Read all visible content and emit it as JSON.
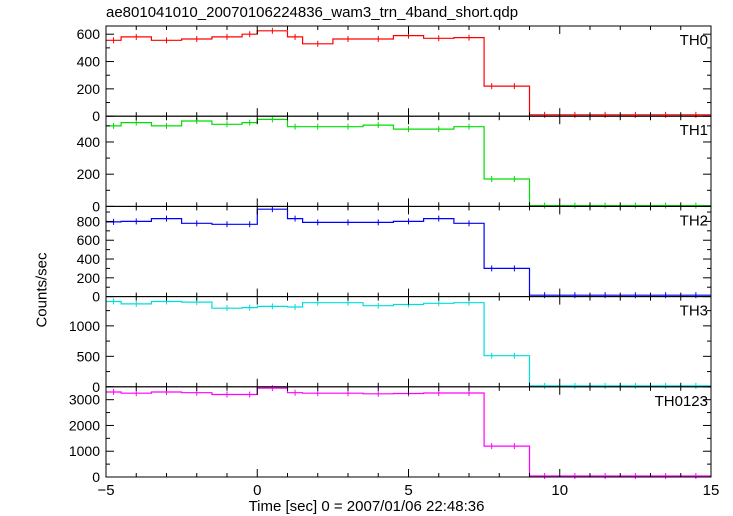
{
  "title": "ae801041010_20070106224836_wam3_trn_4band_short.qdp",
  "xlabel": "Time [sec] 0 = 2007/01/06 22:48:36",
  "ylabel": "Counts/sec",
  "chart_data": {
    "type": "line",
    "step": true,
    "xlim": [
      -5,
      15
    ],
    "xticks": [
      -5,
      0,
      5,
      10,
      15
    ],
    "xticklabels": [
      "−5",
      "0",
      "5",
      "10",
      "15"
    ],
    "bin_edges": [
      -5,
      -4.5,
      -3.5,
      -2.5,
      -1.5,
      -0.5,
      0,
      1,
      1.5,
      2.5,
      3.5,
      4.5,
      5.5,
      6.5,
      7.5,
      8,
      9,
      10,
      11,
      12,
      13,
      14,
      15
    ],
    "panels": [
      {
        "name": "TH0",
        "color": "#ff0000",
        "ylim": [
          0,
          660
        ],
        "yticks": [
          0,
          200,
          400,
          600
        ],
        "values": [
          555,
          580,
          555,
          565,
          580,
          600,
          625,
          580,
          530,
          565,
          565,
          590,
          570,
          575,
          220,
          220,
          10,
          10,
          10,
          10,
          10,
          10
        ]
      },
      {
        "name": "TH1",
        "color": "#00dd00",
        "ylim": [
          0,
          560
        ],
        "yticks": [
          0,
          200,
          400
        ],
        "values": [
          500,
          520,
          500,
          530,
          510,
          520,
          540,
          495,
          495,
          495,
          505,
          480,
          480,
          495,
          170,
          170,
          5,
          5,
          5,
          5,
          5,
          5
        ]
      },
      {
        "name": "TH2",
        "color": "#0000ff",
        "ylim": [
          0,
          960
        ],
        "yticks": [
          0,
          200,
          400,
          600,
          800
        ],
        "values": [
          795,
          800,
          830,
          780,
          770,
          770,
          930,
          830,
          790,
          790,
          790,
          800,
          830,
          780,
          300,
          300,
          15,
          15,
          15,
          15,
          15,
          15
        ]
      },
      {
        "name": "TH3",
        "color": "#00dddd",
        "ylim": [
          0,
          1480
        ],
        "yticks": [
          0,
          500,
          1000
        ],
        "values": [
          1400,
          1360,
          1400,
          1390,
          1290,
          1300,
          1320,
          1310,
          1380,
          1380,
          1330,
          1350,
          1370,
          1380,
          510,
          510,
          15,
          15,
          15,
          15,
          15,
          15
        ]
      },
      {
        "name": "TH0123",
        "color": "#ff00ff",
        "ylim": [
          0,
          3500
        ],
        "yticks": [
          0,
          1000,
          2000,
          3000
        ],
        "values": [
          3300,
          3250,
          3300,
          3270,
          3200,
          3200,
          3450,
          3270,
          3250,
          3250,
          3230,
          3240,
          3260,
          3260,
          1200,
          1200,
          40,
          40,
          40,
          40,
          40,
          40
        ]
      }
    ]
  }
}
